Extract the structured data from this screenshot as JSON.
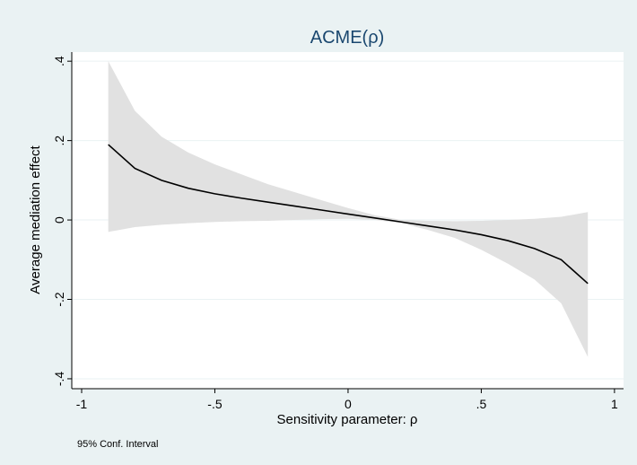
{
  "chart_data": {
    "type": "line",
    "title": "ACME(ρ)",
    "x_label": "Sensitivity parameter: ρ",
    "y_label": "Average mediation effect",
    "note": "95% Conf. Interval",
    "x": [
      -0.9,
      -0.8,
      -0.7,
      -0.6,
      -0.5,
      -0.4,
      -0.3,
      -0.2,
      -0.1,
      0,
      0.1,
      0.2,
      0.3,
      0.4,
      0.5,
      0.6,
      0.7,
      0.8,
      0.9
    ],
    "series": [
      {
        "color": "#000000",
        "values": [
          0.19,
          0.13,
          0.1,
          0.08,
          0.066,
          0.055,
          0.045,
          0.035,
          0.025,
          0.015,
          0.005,
          -0.005,
          -0.015,
          -0.025,
          -0.037,
          -0.052,
          -0.072,
          -0.1,
          -0.16
        ]
      }
    ],
    "band": {
      "color": "#e1e1e1",
      "upper": [
        0.4,
        0.275,
        0.21,
        0.17,
        0.14,
        0.115,
        0.09,
        0.07,
        0.05,
        0.03,
        0.012,
        0,
        -0.002,
        -0.003,
        -0.002,
        0,
        0.003,
        0.008,
        0.02
      ],
      "lower": [
        -0.03,
        -0.018,
        -0.012,
        -0.008,
        -0.005,
        -0.003,
        -0.002,
        0,
        0.002,
        0.003,
        0,
        -0.008,
        -0.025,
        -0.045,
        -0.075,
        -0.11,
        -0.15,
        -0.21,
        -0.345
      ]
    },
    "xlim": [
      -1.037,
      1.034
    ],
    "ylim": [
      -0.425,
      0.423
    ],
    "xticks": [
      -1,
      {
        "value": -0.5,
        "label": "-.5"
      },
      0,
      {
        "value": 0.5,
        "label": ".5"
      },
      1
    ],
    "yticks": [
      {
        "value": -0.4,
        "label": "-.4"
      },
      {
        "value": -0.2,
        "label": "-.2"
      },
      0,
      {
        "value": 0.2,
        "label": ".2"
      },
      {
        "value": 0.4,
        "label": ".4"
      }
    ],
    "grid": true
  }
}
